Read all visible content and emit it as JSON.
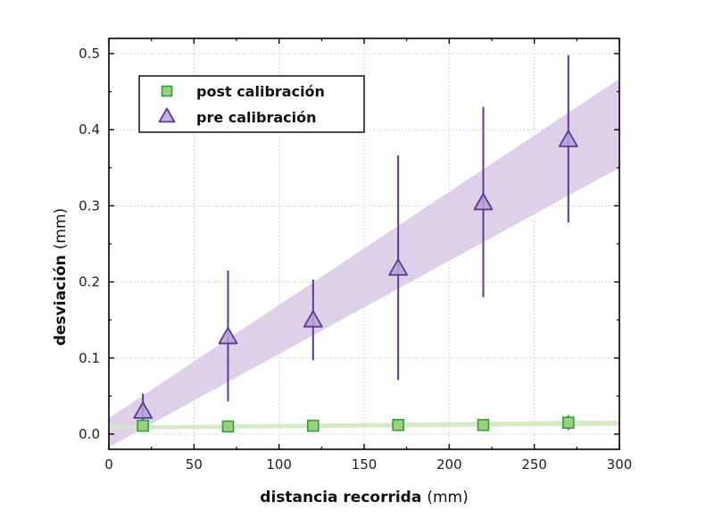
{
  "chart_data": {
    "type": "scatter",
    "xlabel": "distancia recorrida",
    "xlabel_unit": "(mm)",
    "ylabel": "desviación",
    "ylabel_unit": "(mm)",
    "xlim": [
      0,
      300
    ],
    "ylim": [
      -0.02,
      0.52
    ],
    "x_ticks": [
      0,
      50,
      100,
      150,
      200,
      250,
      300
    ],
    "x_tick_labels": [
      "0",
      "50",
      "100",
      "150",
      "200",
      "250",
      "300"
    ],
    "y_ticks": [
      0.0,
      0.1,
      0.2,
      0.3,
      0.4,
      0.5
    ],
    "y_tick_labels": [
      "0.0",
      "0.1",
      "0.2",
      "0.3",
      "0.4",
      "0.5"
    ],
    "grid": true,
    "legend_position": "top-left",
    "series": [
      {
        "name": "post calibración",
        "marker": "square",
        "color": "#2e9e3e",
        "fill": "#9ed07a",
        "x": [
          20,
          70,
          120,
          170,
          220,
          270
        ],
        "y": [
          0.011,
          0.01,
          0.011,
          0.012,
          0.012,
          0.015
        ],
        "err_low": [
          0.006,
          0.007,
          0.004,
          0.004,
          0.004,
          0.01
        ],
        "err_high": [
          0.004,
          0.005,
          0.004,
          0.004,
          0.004,
          0.01
        ],
        "band": {
          "x": [
            0,
            300
          ],
          "lower": [
            0.006,
            0.011
          ],
          "upper": [
            0.011,
            0.018
          ],
          "color": "#d3e8c2"
        }
      },
      {
        "name": "pre calibración",
        "marker": "triangle",
        "color": "#5b3a96",
        "fill": "#b9a2d6",
        "x": [
          20,
          70,
          120,
          170,
          220,
          270
        ],
        "y": [
          0.03,
          0.128,
          0.15,
          0.218,
          0.304,
          0.387
        ],
        "err_low": [
          0.013,
          0.085,
          0.053,
          0.147,
          0.124,
          0.109
        ],
        "err_high": [
          0.023,
          0.087,
          0.053,
          0.148,
          0.126,
          0.111
        ],
        "band": {
          "x": [
            0,
            300
          ],
          "lower": [
            -0.017,
            0.35
          ],
          "upper": [
            0.021,
            0.467
          ],
          "color": "#dccbe8"
        }
      }
    ]
  }
}
